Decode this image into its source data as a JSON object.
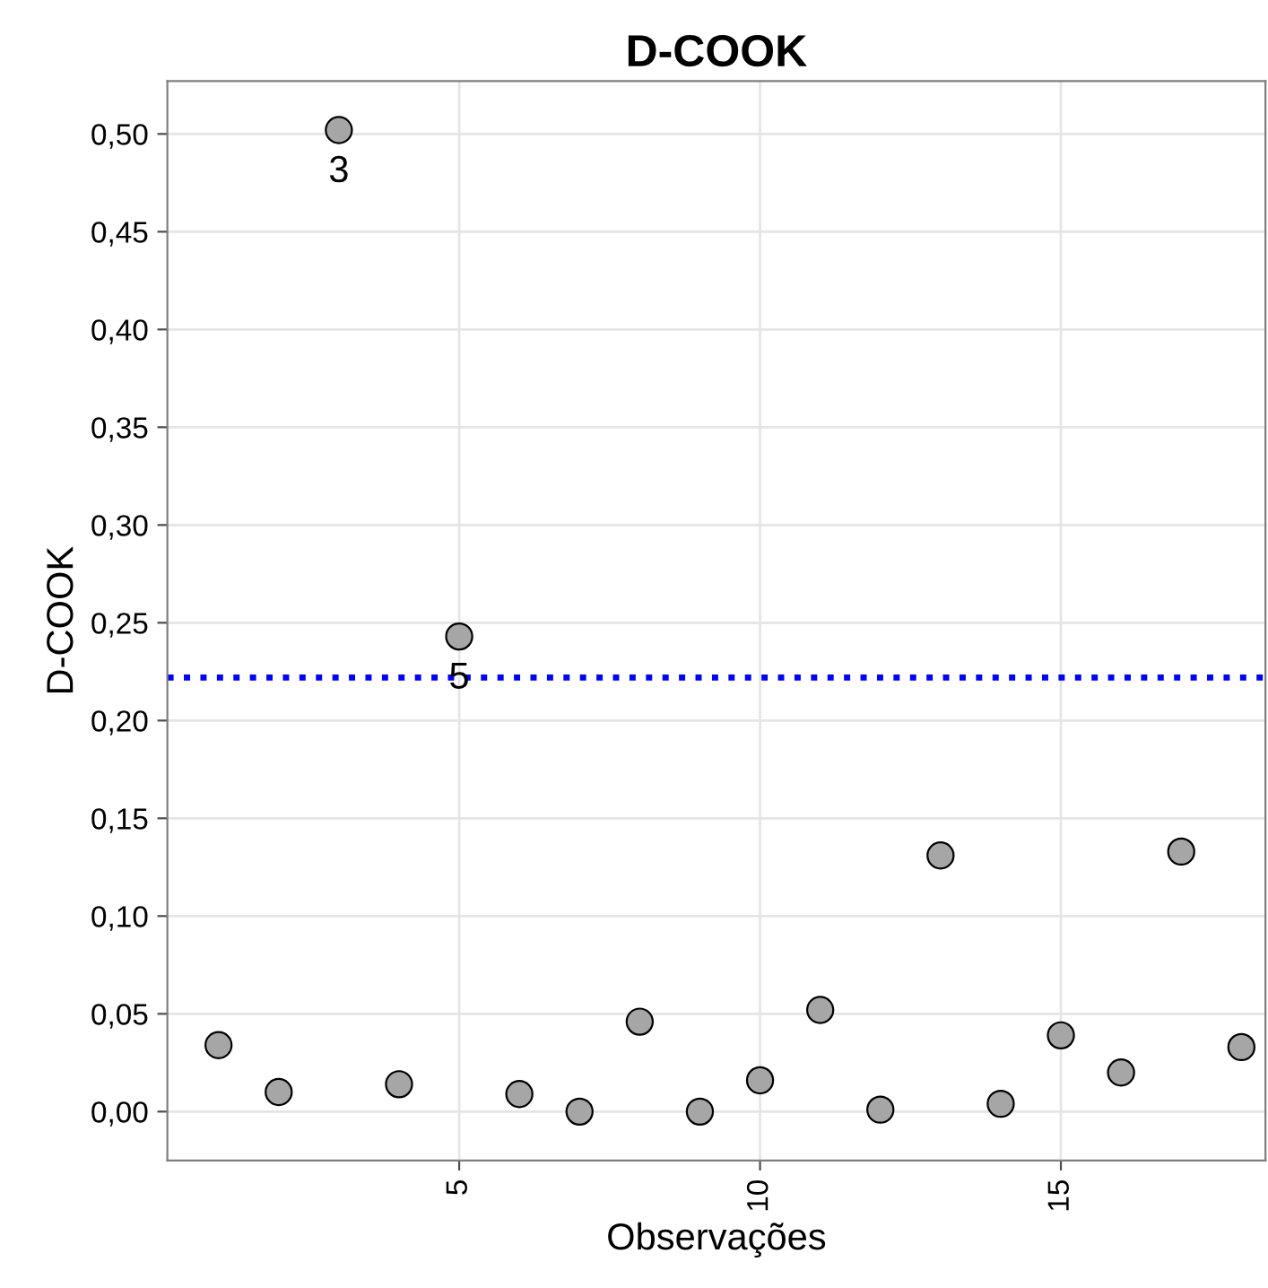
{
  "chart_data": {
    "type": "scatter",
    "title": "D-COOK",
    "xlabel": "Observações",
    "ylabel": "D-COOK",
    "x": [
      1,
      2,
      3,
      4,
      5,
      6,
      7,
      8,
      9,
      10,
      11,
      12,
      13,
      14,
      15,
      16,
      17,
      18
    ],
    "series": [
      {
        "color": "#a6a6a6",
        "values": [
          0.034,
          0.01,
          0.502,
          0.014,
          0.243,
          0.009,
          0.0,
          0.046,
          0.0,
          0.016,
          0.052,
          0.001,
          0.131,
          0.004,
          0.039,
          0.02,
          0.133,
          0.033
        ]
      }
    ],
    "marker": "circle",
    "annotations": [
      {
        "text": "3",
        "x": 3,
        "y": 0.502
      },
      {
        "text": "5",
        "x": 5,
        "y": 0.243
      }
    ],
    "ref_lines": [
      {
        "axis": "y",
        "value": 0.222,
        "color": "#0000ff",
        "line_style": "dotted"
      }
    ],
    "xlim": [
      0.15,
      18.4
    ],
    "xticks": [
      5,
      10,
      15
    ],
    "ylim": [
      -0.025,
      0.527
    ],
    "yticks": [
      {
        "value": 0,
        "label": "0,00"
      },
      {
        "value": 0.05,
        "label": "0,05"
      },
      {
        "value": 0.1,
        "label": "0,10"
      },
      {
        "value": 0.15,
        "label": "0,15"
      },
      {
        "value": 0.2,
        "label": "0,20"
      },
      {
        "value": 0.25,
        "label": "0,25"
      },
      {
        "value": 0.3,
        "label": "0,30"
      },
      {
        "value": 0.35,
        "label": "0,35"
      },
      {
        "value": 0.4,
        "label": "0,40"
      },
      {
        "value": 0.45,
        "label": "0,45"
      },
      {
        "value": 0.5,
        "label": "0,50"
      }
    ],
    "grid": true,
    "legend": false
  }
}
